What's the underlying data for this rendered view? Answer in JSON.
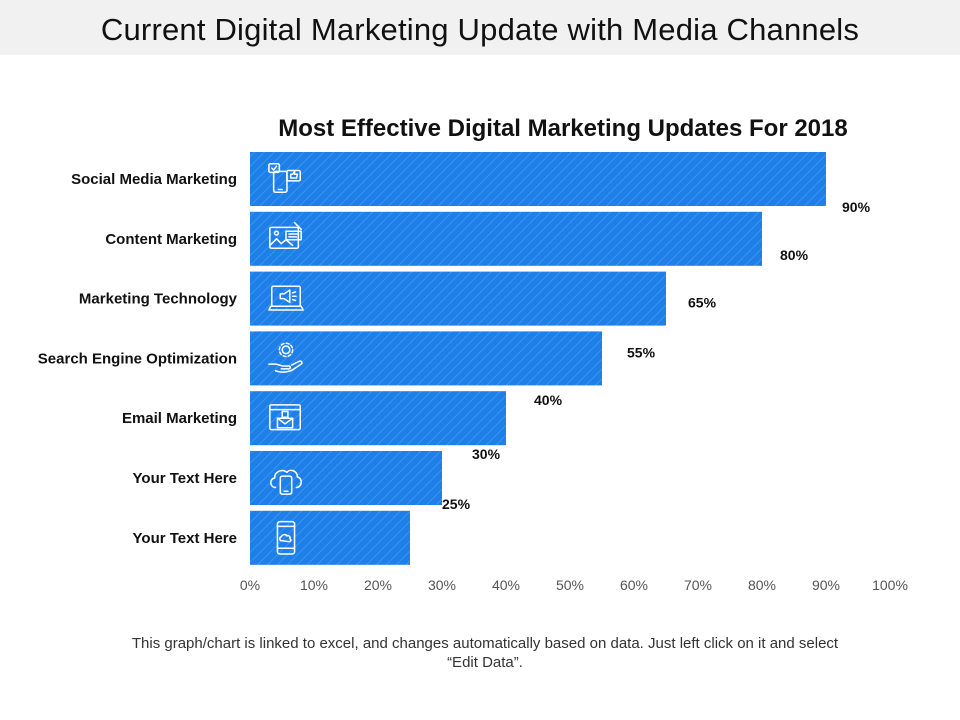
{
  "slide": {
    "title": "Current Digital Marketing Update with Media Channels",
    "footer": "This graph/chart is linked to excel, and changes automatically based on data. Just left click on it and select “Edit Data”."
  },
  "colors": {
    "bar": "#1e7fe8",
    "bar_stripe": "#3d93ee",
    "icon": "#ffffff",
    "text": "#111111"
  },
  "chart_data": {
    "type": "bar",
    "orientation": "horizontal",
    "title": "Most Effective Digital Marketing Updates For 2018",
    "categories": [
      "Social Media Marketing",
      "Content Marketing",
      "Marketing Technology",
      "Search Engine Optimization",
      "Email Marketing",
      "Your Text Here",
      "Your Text Here"
    ],
    "values": [
      90,
      80,
      65,
      55,
      40,
      30,
      25
    ],
    "value_labels": [
      "90%",
      "80%",
      "65%",
      "55%",
      "40%",
      "30%",
      "25%"
    ],
    "icons": [
      "social-media-icon",
      "content-icon",
      "marketing-technology-icon",
      "seo-icon",
      "email-icon",
      "cloud-mobile-icon",
      "mobile-cloud-icon"
    ],
    "xlim": [
      0,
      100
    ],
    "xticks": [
      0,
      10,
      20,
      30,
      40,
      50,
      60,
      70,
      80,
      90,
      100
    ],
    "xtick_labels": [
      "0%",
      "10%",
      "20%",
      "30%",
      "40%",
      "50%",
      "60%",
      "70%",
      "80%",
      "90%",
      "100%"
    ],
    "xlabel": "",
    "ylabel": "",
    "grid": false,
    "legend": "none"
  }
}
